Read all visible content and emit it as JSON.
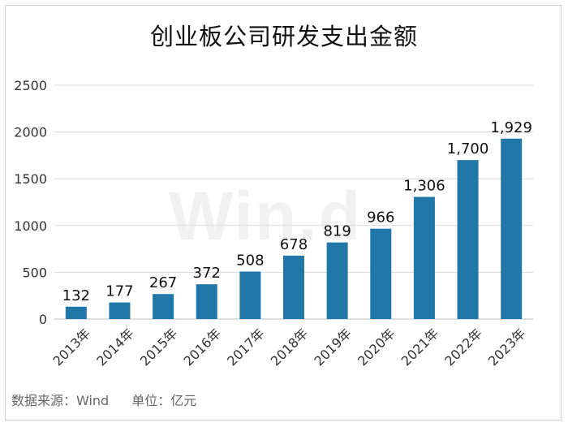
{
  "chart_data": {
    "type": "bar",
    "title": "创业板公司研发支出金额",
    "categories": [
      "2013年",
      "2014年",
      "2015年",
      "2016年",
      "2017年",
      "2018年",
      "2019年",
      "2020年",
      "2021年",
      "2022年",
      "2023年"
    ],
    "values": [
      132,
      177,
      267,
      372,
      508,
      678,
      819,
      966,
      1306,
      1700,
      1929
    ],
    "value_labels": [
      "132",
      "177",
      "267",
      "372",
      "508",
      "678",
      "819",
      "966",
      "1,306",
      "1,700",
      "1,929"
    ],
    "yticks": [
      "0",
      "500",
      "1000",
      "1500",
      "2000",
      "2500"
    ],
    "ylim": [
      0,
      2500
    ],
    "grid": true,
    "legend": "none",
    "bar_color": "#2277a9"
  },
  "watermark": "Win.d",
  "footer": {
    "source": "数据来源：Wind",
    "unit": "单位：亿元"
  }
}
